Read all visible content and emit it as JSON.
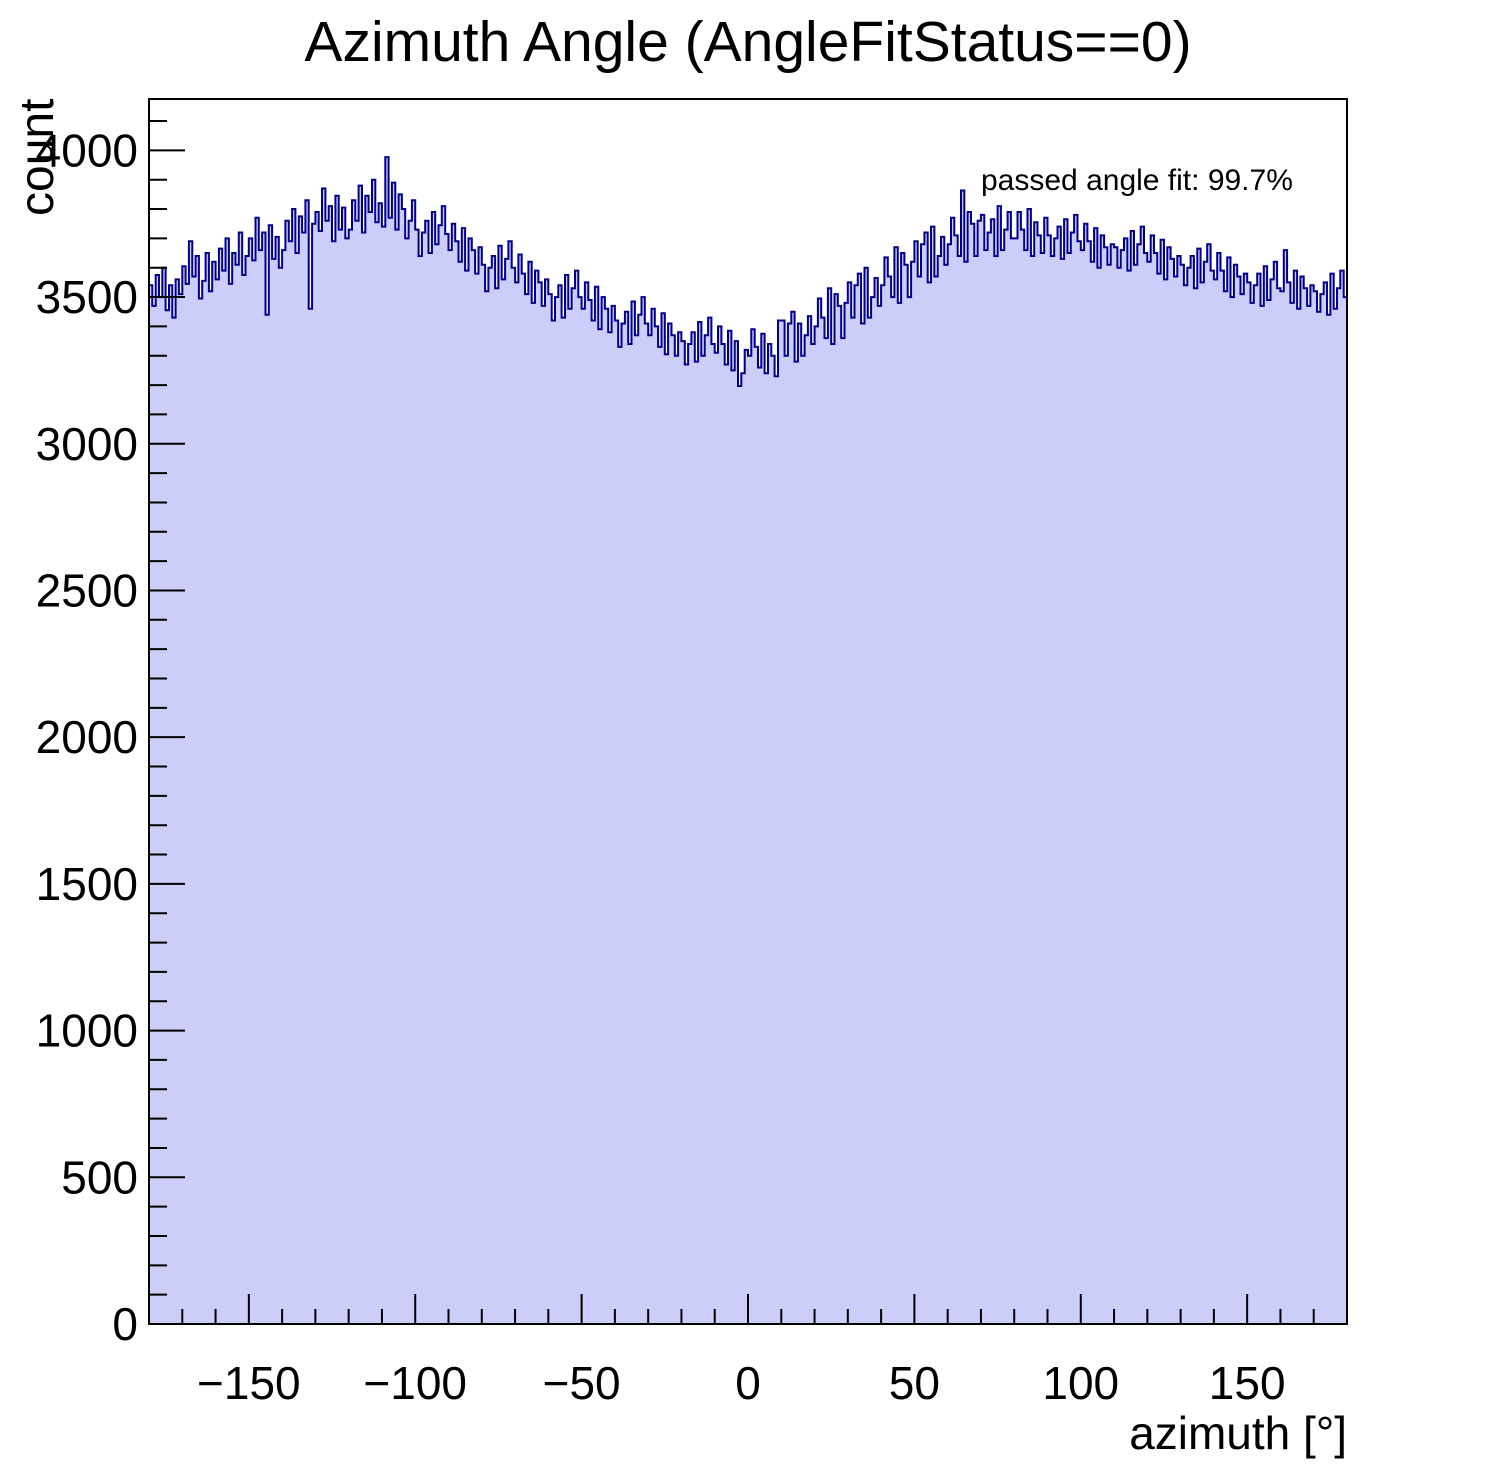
{
  "chart_data": {
    "type": "bar",
    "subtype": "step-histogram",
    "title": "Azimuth Angle (AngleFitStatus==0)",
    "xlabel": "azimuth [°]",
    "ylabel": "count",
    "annotation": "passed angle fit: 99.7%",
    "xlim": [
      -180,
      180
    ],
    "ylim": [
      0,
      4175
    ],
    "bin_width": 1,
    "x_start": -180,
    "grid": false,
    "legend": "none",
    "x_major_ticks": [
      {
        "value": -150,
        "label": "−150"
      },
      {
        "value": -100,
        "label": "−100"
      },
      {
        "value": -50,
        "label": "−50"
      },
      {
        "value": 0,
        "label": "0"
      },
      {
        "value": 50,
        "label": "50"
      },
      {
        "value": 100,
        "label": "100"
      },
      {
        "value": 150,
        "label": "150"
      }
    ],
    "x_minor_tick_step": 10,
    "y_major_ticks": [
      {
        "value": 0,
        "label": "0"
      },
      {
        "value": 500,
        "label": "500"
      },
      {
        "value": 1000,
        "label": "1000"
      },
      {
        "value": 1500,
        "label": "1500"
      },
      {
        "value": 2000,
        "label": "2000"
      },
      {
        "value": 2500,
        "label": "2500"
      },
      {
        "value": 3000,
        "label": "3000"
      },
      {
        "value": 3500,
        "label": "3500"
      },
      {
        "value": 4000,
        "label": "4000"
      }
    ],
    "y_minor_tick_step": 100,
    "colors": {
      "fill": "#cccdf8",
      "line": "#00008b",
      "frame": "#000000",
      "text": "#000000",
      "background": "#ffffff"
    },
    "values": [
      3540,
      3470,
      3575,
      3500,
      3600,
      3455,
      3540,
      3430,
      3560,
      3510,
      3605,
      3545,
      3690,
      3570,
      3640,
      3495,
      3555,
      3650,
      3520,
      3620,
      3560,
      3665,
      3590,
      3700,
      3545,
      3650,
      3610,
      3720,
      3575,
      3640,
      3700,
      3625,
      3770,
      3660,
      3720,
      3440,
      3745,
      3630,
      3705,
      3600,
      3660,
      3760,
      3690,
      3800,
      3650,
      3775,
      3720,
      3830,
      3460,
      3750,
      3790,
      3725,
      3870,
      3760,
      3810,
      3690,
      3845,
      3730,
      3805,
      3700,
      3730,
      3830,
      3760,
      3880,
      3720,
      3845,
      3790,
      3900,
      3755,
      3820,
      3740,
      3977,
      3770,
      3890,
      3730,
      3850,
      3800,
      3700,
      3760,
      3830,
      3730,
      3640,
      3720,
      3760,
      3650,
      3790,
      3680,
      3745,
      3810,
      3715,
      3660,
      3750,
      3690,
      3620,
      3735,
      3590,
      3700,
      3660,
      3580,
      3670,
      3610,
      3520,
      3600,
      3640,
      3530,
      3675,
      3560,
      3630,
      3690,
      3600,
      3550,
      3645,
      3580,
      3510,
      3620,
      3480,
      3590,
      3550,
      3470,
      3560,
      3510,
      3420,
      3500,
      3540,
      3430,
      3575,
      3460,
      3530,
      3590,
      3500,
      3460,
      3550,
      3490,
      3420,
      3535,
      3390,
      3500,
      3460,
      3380,
      3470,
      3420,
      3330,
      3410,
      3450,
      3340,
      3485,
      3370,
      3440,
      3500,
      3410,
      3370,
      3460,
      3400,
      3330,
      3445,
      3305,
      3410,
      3370,
      3300,
      3380,
      3350,
      3270,
      3340,
      3380,
      3280,
      3415,
      3300,
      3370,
      3430,
      3340,
      3310,
      3400,
      3340,
      3270,
      3385,
      3250,
      3350,
      3197,
      3240,
      3320,
      3300,
      3390,
      3330,
      3260,
      3375,
      3240,
      3340,
      3300,
      3230,
      3420,
      3420,
      3300,
      3410,
      3450,
      3280,
      3410,
      3300,
      3370,
      3435,
      3340,
      3400,
      3495,
      3430,
      3360,
      3530,
      3340,
      3510,
      3470,
      3360,
      3480,
      3550,
      3430,
      3540,
      3580,
      3410,
      3600,
      3430,
      3500,
      3565,
      3470,
      3540,
      3635,
      3570,
      3500,
      3670,
      3480,
      3650,
      3610,
      3500,
      3620,
      3690,
      3570,
      3680,
      3720,
      3550,
      3740,
      3570,
      3640,
      3705,
      3610,
      3680,
      3770,
      3710,
      3640,
      3863,
      3620,
      3790,
      3750,
      3640,
      3760,
      3780,
      3660,
      3720,
      3765,
      3640,
      3810,
      3660,
      3730,
      3790,
      3700,
      3700,
      3790,
      3730,
      3660,
      3800,
      3640,
      3755,
      3710,
      3650,
      3770,
      3710,
      3640,
      3700,
      3740,
      3630,
      3765,
      3650,
      3720,
      3780,
      3690,
      3660,
      3750,
      3690,
      3620,
      3735,
      3600,
      3710,
      3670,
      3610,
      3680,
      3670,
      3600,
      3660,
      3700,
      3590,
      3725,
      3610,
      3680,
      3740,
      3650,
      3620,
      3710,
      3650,
      3580,
      3695,
      3560,
      3670,
      3630,
      3570,
      3640,
      3610,
      3540,
      3600,
      3640,
      3530,
      3665,
      3550,
      3620,
      3680,
      3590,
      3560,
      3650,
      3590,
      3520,
      3635,
      3500,
      3610,
      3570,
      3510,
      3580,
      3550,
      3480,
      3540,
      3580,
      3470,
      3605,
      3490,
      3560,
      3620,
      3530,
      3520,
      3660,
      3550,
      3480,
      3590,
      3460,
      3570,
      3530,
      3470,
      3540,
      3520,
      3450,
      3510,
      3550,
      3440,
      3580,
      3460,
      3530,
      3590,
      3500
    ]
  }
}
